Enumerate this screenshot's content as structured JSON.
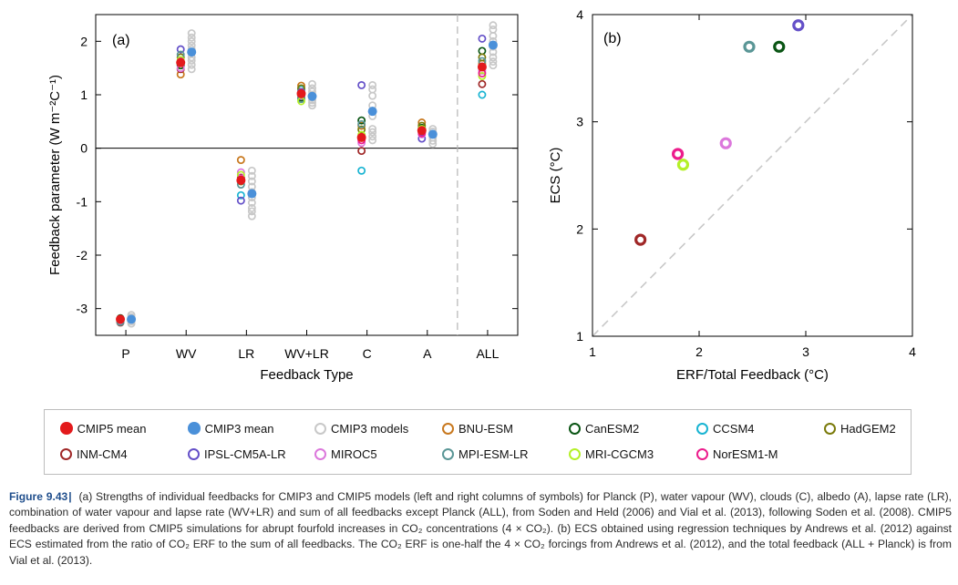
{
  "colors": {
    "cmip5_mean": "#e31a1c",
    "cmip3_mean": "#4a90d9",
    "cmip3_models": "#c8c8c8",
    "BNU-ESM": "#c8781e",
    "CanESM2": "#0a5514",
    "CCSM4": "#19b4d2",
    "HadGEM2": "#7a7a0a",
    "INM-CM4": "#a02828",
    "IPSL-CM5A-LR": "#6450c8",
    "MIROC5": "#dc78dc",
    "MPI-ESM-LR": "#5a9696",
    "MRI-CGCM3": "#b4f028",
    "NorESM1-M": "#ec1c8c"
  },
  "chart_data": [
    {
      "type": "scatter",
      "panel_label": "(a)",
      "xlabel": "Feedback Type",
      "ylabel": "Feedback parameter (W m⁻²C⁻¹)",
      "categories": [
        "P",
        "WV",
        "LR",
        "WV+LR",
        "C",
        "A",
        "ALL"
      ],
      "ylim": [
        -3.5,
        2.5
      ],
      "yticks": [
        -3,
        -2,
        -1,
        0,
        1,
        2
      ],
      "ytick_labels": [
        "-3",
        "-2",
        "-1",
        "0",
        "1",
        "2"
      ],
      "zero_line": true,
      "divider_before_category": "ALL",
      "cmip5": {
        "models": {
          "P": [
            [
              "BNU-ESM",
              -3.22
            ],
            [
              "CanESM2",
              -3.18
            ],
            [
              "HadGEM2",
              -3.24
            ],
            [
              "INM-CM4",
              -3.26
            ],
            [
              "IPSL-CM5A-LR",
              -3.2
            ],
            [
              "MIROC5",
              -3.22
            ],
            [
              "MPI-ESM-LR",
              -3.25
            ],
            [
              "NorESM1-M",
              -3.2
            ]
          ],
          "WV": [
            [
              "BNU-ESM",
              1.38
            ],
            [
              "CanESM2",
              1.55
            ],
            [
              "CCSM4",
              1.6
            ],
            [
              "HadGEM2",
              1.7
            ],
            [
              "INM-CM4",
              1.48
            ],
            [
              "IPSL-CM5A-LR",
              1.85
            ],
            [
              "MIROC5",
              1.5
            ],
            [
              "MPI-ESM-LR",
              1.75
            ],
            [
              "MRI-CGCM3",
              1.65
            ],
            [
              "NorESM1-M",
              1.62
            ]
          ],
          "LR": [
            [
              "BNU-ESM",
              -0.22
            ],
            [
              "CanESM2",
              -0.6
            ],
            [
              "CCSM4",
              -0.88
            ],
            [
              "HadGEM2",
              -0.62
            ],
            [
              "INM-CM4",
              -0.55
            ],
            [
              "IPSL-CM5A-LR",
              -0.98
            ],
            [
              "MIROC5",
              -0.45
            ],
            [
              "MPI-ESM-LR",
              -0.68
            ],
            [
              "MRI-CGCM3",
              -0.5
            ],
            [
              "NorESM1-M",
              -0.58
            ]
          ],
          "WV+LR": [
            [
              "BNU-ESM",
              1.17
            ],
            [
              "CanESM2",
              0.95
            ],
            [
              "CCSM4",
              1.1
            ],
            [
              "HadGEM2",
              1.12
            ],
            [
              "INM-CM4",
              1.0
            ],
            [
              "IPSL-CM5A-LR",
              1.05
            ],
            [
              "MIROC5",
              0.98
            ],
            [
              "MPI-ESM-LR",
              0.92
            ],
            [
              "MRI-CGCM3",
              0.88
            ],
            [
              "NorESM1-M",
              1.03
            ]
          ],
          "C": [
            [
              "BNU-ESM",
              0.42
            ],
            [
              "CanESM2",
              0.52
            ],
            [
              "CCSM4",
              -0.42
            ],
            [
              "HadGEM2",
              0.35
            ],
            [
              "INM-CM4",
              -0.05
            ],
            [
              "IPSL-CM5A-LR",
              1.18
            ],
            [
              "MIROC5",
              0.1
            ],
            [
              "MPI-ESM-LR",
              0.45
            ],
            [
              "MRI-CGCM3",
              0.25
            ],
            [
              "NorESM1-M",
              0.15
            ]
          ],
          "A": [
            [
              "BNU-ESM",
              0.48
            ],
            [
              "CanESM2",
              0.38
            ],
            [
              "CCSM4",
              0.3
            ],
            [
              "HadGEM2",
              0.42
            ],
            [
              "INM-CM4",
              0.3
            ],
            [
              "IPSL-CM5A-LR",
              0.18
            ],
            [
              "MIROC5",
              0.26
            ],
            [
              "MPI-ESM-LR",
              0.34
            ],
            [
              "MRI-CGCM3",
              0.36
            ],
            [
              "NorESM1-M",
              0.28
            ]
          ],
          "ALL": [
            [
              "BNU-ESM",
              1.58
            ],
            [
              "CanESM2",
              1.82
            ],
            [
              "CCSM4",
              1.0
            ],
            [
              "HadGEM2",
              1.7
            ],
            [
              "INM-CM4",
              1.2
            ],
            [
              "IPSL-CM5A-LR",
              2.05
            ],
            [
              "MIROC5",
              1.45
            ],
            [
              "MPI-ESM-LR",
              1.63
            ],
            [
              "MRI-CGCM3",
              1.35
            ],
            [
              "NorESM1-M",
              1.4
            ]
          ]
        },
        "means": {
          "P": -3.2,
          "WV": 1.6,
          "LR": -0.6,
          "WV+LR": 1.02,
          "C": 0.2,
          "A": 0.33,
          "ALL": 1.52
        }
      },
      "cmip3": {
        "models": {
          "P": [
            -3.12,
            -3.16,
            -3.2,
            -3.24,
            -3.28
          ],
          "WV": [
            1.48,
            1.56,
            1.64,
            1.7,
            1.78,
            1.85,
            1.92,
            2.0,
            2.07,
            2.15
          ],
          "LR": [
            -0.42,
            -0.52,
            -0.62,
            -0.72,
            -0.82,
            -0.92,
            -1.02,
            -1.12,
            -1.18,
            -1.27
          ],
          "WV+LR": [
            0.8,
            0.85,
            0.9,
            0.95,
            1.0,
            1.06,
            1.12,
            1.2
          ],
          "C": [
            0.15,
            0.22,
            0.3,
            0.36,
            0.6,
            0.7,
            0.8,
            0.98,
            1.1,
            1.18
          ],
          "A": [
            0.08,
            0.14,
            0.2,
            0.26,
            0.31,
            0.36
          ],
          "ALL": [
            1.55,
            1.62,
            1.7,
            1.8,
            1.9,
            2.0,
            2.1,
            2.22,
            2.3
          ]
        },
        "means": {
          "P": -3.2,
          "WV": 1.8,
          "LR": -0.85,
          "WV+LR": 0.97,
          "C": 0.69,
          "A": 0.26,
          "ALL": 1.93
        }
      }
    },
    {
      "type": "scatter",
      "panel_label": "(b)",
      "xlabel": "ERF/Total Feedback (°C)",
      "ylabel": "ECS (°C)",
      "xlim": [
        1,
        4
      ],
      "ylim": [
        1,
        4
      ],
      "xticks": [
        1,
        2,
        3,
        4
      ],
      "xtick_labels": [
        "1",
        "2",
        "3",
        "4"
      ],
      "yticks": [
        1,
        2,
        3,
        4
      ],
      "ytick_labels": [
        "1",
        "2",
        "3",
        "4"
      ],
      "one_to_one_line": true,
      "points": [
        {
          "model": "INM-CM4",
          "x": 1.45,
          "y": 1.9
        },
        {
          "model": "NorESM1-M",
          "x": 1.8,
          "y": 2.7
        },
        {
          "model": "MRI-CGCM3",
          "x": 1.85,
          "y": 2.6
        },
        {
          "model": "MIROC5",
          "x": 2.25,
          "y": 2.8
        },
        {
          "model": "MPI-ESM-LR",
          "x": 2.47,
          "y": 3.7
        },
        {
          "model": "CanESM2",
          "x": 2.75,
          "y": 3.7
        },
        {
          "model": "IPSL-CM5A-LR",
          "x": 2.93,
          "y": 3.9
        }
      ]
    }
  ],
  "legend": [
    {
      "label": "CMIP5 mean",
      "color": "#e31a1c",
      "filled": true
    },
    {
      "label": "CMIP3 mean",
      "color": "#4a90d9",
      "filled": true
    },
    {
      "label": "CMIP3 models",
      "color": "#c8c8c8",
      "filled": false
    },
    {
      "label": "BNU-ESM",
      "color": "#c8781e",
      "filled": false
    },
    {
      "label": "CanESM2",
      "color": "#0a5514",
      "filled": false
    },
    {
      "label": "CCSM4",
      "color": "#19b4d2",
      "filled": false
    },
    {
      "label": "HadGEM2",
      "color": "#7a7a0a",
      "filled": false
    },
    {
      "label": "INM-CM4",
      "color": "#a02828",
      "filled": false
    },
    {
      "label": "IPSL-CM5A-LR",
      "color": "#6450c8",
      "filled": false
    },
    {
      "label": "MIROC5",
      "color": "#dc78dc",
      "filled": false
    },
    {
      "label": "MPI-ESM-LR",
      "color": "#5a9696",
      "filled": false
    },
    {
      "label": "MRI-CGCM3",
      "color": "#b4f028",
      "filled": false
    },
    {
      "label": "NorESM1-M",
      "color": "#ec1c8c",
      "filled": false
    }
  ],
  "caption": {
    "figure_label": "Figure 9.43",
    "separator": "|",
    "text": "(a) Strengths of individual feedbacks for CMIP3 and CMIP5 models (left and right columns of symbols) for Planck (P), water vapour (WV), clouds (C), albedo (A), lapse rate (LR), combination of water vapour and lapse rate (WV+LR) and sum of all feedbacks except Planck (ALL), from Soden and Held (2006) and Vial et al. (2013), following Soden et al. (2008). CMIP5 feedbacks are derived from CMIP5 simulations for abrupt fourfold increases in CO₂ concentrations (4 × CO₂). (b) ECS obtained using regression techniques by Andrews et al. (2012) against ECS estimated from the ratio of CO₂ ERF to the sum of all feedbacks. The CO₂ ERF is one-half the 4 × CO₂ forcings from Andrews et al. (2012), and the total feedback (ALL + Planck) is from Vial et al. (2013)."
  }
}
